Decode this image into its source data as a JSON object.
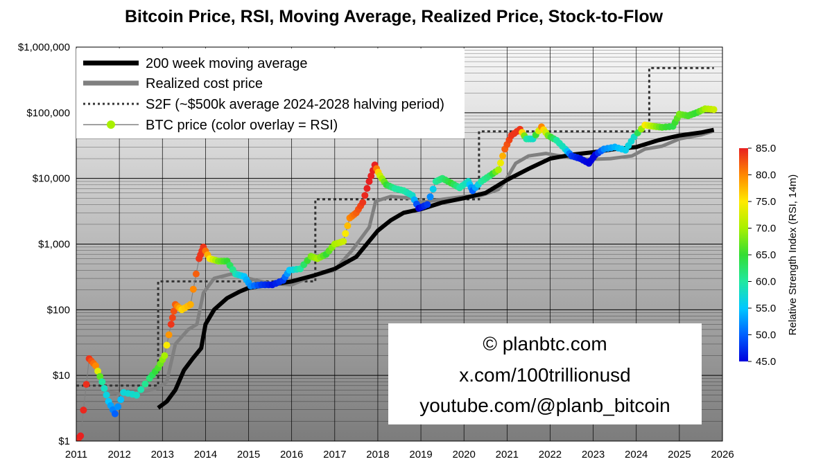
{
  "title": "Bitcoin Price, RSI, Moving Average, Realized Price, Stock-to-Flow",
  "chart_data": {
    "type": "line",
    "yscale": "log",
    "ylim": [
      1,
      1000000
    ],
    "xlim": [
      2011,
      2026
    ],
    "y_ticks": [
      {
        "value": 1,
        "label": "$1"
      },
      {
        "value": 10,
        "label": "$10"
      },
      {
        "value": 100,
        "label": "$100"
      },
      {
        "value": 1000,
        "label": "$1,000"
      },
      {
        "value": 10000,
        "label": "$10,000"
      },
      {
        "value": 100000,
        "label": "$100,000"
      },
      {
        "value": 1000000,
        "label": "$1,000,000"
      }
    ],
    "x_ticks": [
      "2011",
      "2012",
      "2013",
      "2014",
      "2015",
      "2016",
      "2017",
      "2018",
      "2019",
      "2020",
      "2021",
      "2022",
      "2023",
      "2024",
      "2025",
      "2026"
    ],
    "legend": [
      {
        "label": "200 week moving average",
        "style": "thick-black"
      },
      {
        "label": "Realized cost price",
        "style": "thick-gray"
      },
      {
        "label": "S2F (~$500k average 2024-2028 halving period)",
        "style": "dotted-black"
      },
      {
        "label": "BTC price (color overlay = RSI)",
        "style": "gray-with-marker"
      }
    ],
    "colorbar": {
      "label": "Relative Strength Index (RSI, 14m)",
      "min": 45,
      "max": 85,
      "ticks": [
        "85.0",
        "80.0",
        "75.0",
        "70.0",
        "65.0",
        "60.0",
        "55.0",
        "50.0",
        "45.0"
      ]
    },
    "series": [
      {
        "name": "200 week moving average",
        "x": [
          2012.9,
          2013.1,
          2013.3,
          2013.5,
          2013.7,
          2013.9,
          2014.0,
          2014.2,
          2014.5,
          2014.8,
          2015.0,
          2015.5,
          2016.0,
          2016.5,
          2017.0,
          2017.5,
          2018.0,
          2018.3,
          2018.6,
          2019.0,
          2019.5,
          2020.0,
          2020.5,
          2021.0,
          2021.5,
          2022.0,
          2022.5,
          2023.0,
          2023.5,
          2024.0,
          2024.5,
          2025.0,
          2025.5,
          2025.8
        ],
        "y": [
          3.2,
          4,
          6,
          12,
          18,
          26,
          60,
          100,
          150,
          190,
          215,
          240,
          270,
          330,
          420,
          640,
          1600,
          2300,
          3000,
          3400,
          4300,
          5000,
          6000,
          9500,
          14000,
          20000,
          23000,
          25000,
          28000,
          30000,
          38000,
          45000,
          50000,
          55000
        ]
      },
      {
        "name": "Realized cost price",
        "x": [
          2011.6,
          2012.0,
          2012.5,
          2012.9,
          2013.1,
          2013.3,
          2013.6,
          2013.8,
          2013.95,
          2014.2,
          2014.6,
          2015.0,
          2015.5,
          2016.0,
          2016.5,
          2017.0,
          2017.4,
          2017.8,
          2017.95,
          2018.3,
          2018.8,
          2019.0,
          2019.5,
          2020.0,
          2020.4,
          2020.8,
          2020.95,
          2021.2,
          2021.5,
          2021.9,
          2022.4,
          2022.9,
          2023.4,
          2023.9,
          2024.2,
          2024.6,
          2025.0,
          2025.5,
          2025.8
        ],
        "y": [
          6,
          5.2,
          5.5,
          6.5,
          8,
          30,
          50,
          60,
          180,
          300,
          350,
          300,
          250,
          240,
          330,
          400,
          800,
          1800,
          4500,
          5300,
          5000,
          4300,
          4800,
          5300,
          5500,
          6800,
          9000,
          17000,
          22000,
          24000,
          21000,
          19500,
          20000,
          22000,
          28000,
          31000,
          40000,
          46000,
          53000
        ]
      },
      {
        "name": "S2F",
        "x": [
          2011.0,
          2012.9,
          2012.9,
          2016.55,
          2016.55,
          2020.35,
          2020.35,
          2024.3,
          2024.3,
          2025.8
        ],
        "y": [
          7,
          7,
          270,
          270,
          4800,
          4800,
          52000,
          52000,
          480000,
          480000
        ]
      },
      {
        "name": "BTC price",
        "x": [
          2011.0,
          2011.1,
          2011.3,
          2011.45,
          2011.6,
          2011.75,
          2011.9,
          2012.1,
          2012.4,
          2012.7,
          2012.9,
          2013.05,
          2013.2,
          2013.3,
          2013.45,
          2013.65,
          2013.85,
          2013.95,
          2014.1,
          2014.3,
          2014.5,
          2014.7,
          2014.9,
          2015.05,
          2015.3,
          2015.55,
          2015.8,
          2015.95,
          2016.2,
          2016.45,
          2016.6,
          2016.8,
          2017.0,
          2017.2,
          2017.35,
          2017.5,
          2017.65,
          2017.8,
          2017.93,
          2018.05,
          2018.2,
          2018.4,
          2018.6,
          2018.8,
          2018.95,
          2019.15,
          2019.35,
          2019.5,
          2019.7,
          2019.9,
          2020.1,
          2020.2,
          2020.4,
          2020.6,
          2020.8,
          2020.95,
          2021.1,
          2021.3,
          2021.45,
          2021.6,
          2021.8,
          2021.95,
          2022.15,
          2022.35,
          2022.5,
          2022.7,
          2022.9,
          2023.05,
          2023.25,
          2023.5,
          2023.75,
          2023.95,
          2024.2,
          2024.4,
          2024.6,
          2024.85,
          2025.0,
          2025.2,
          2025.4,
          2025.6,
          2025.8
        ],
        "y": [
          1,
          1.2,
          18,
          14,
          8,
          4,
          2.6,
          5.5,
          5,
          9,
          13,
          20,
          60,
          120,
          100,
          120,
          600,
          900,
          600,
          550,
          550,
          350,
          320,
          230,
          240,
          240,
          280,
          400,
          420,
          650,
          600,
          700,
          1000,
          1100,
          2500,
          3000,
          4300,
          9000,
          16000,
          11000,
          8000,
          7000,
          6500,
          5500,
          3500,
          4000,
          9000,
          10000,
          8500,
          7200,
          9000,
          6500,
          9000,
          11000,
          13500,
          28000,
          45000,
          56000,
          40000,
          40000,
          61000,
          45000,
          38000,
          28000,
          22000,
          20000,
          17000,
          23000,
          28000,
          30000,
          27000,
          43000,
          65000,
          62000,
          60000,
          62000,
          95000,
          90000,
          100000,
          115000,
          112000
        ],
        "rsi": [
          84,
          85,
          84,
          80,
          60,
          55,
          50,
          57,
          58,
          62,
          66,
          70,
          84,
          82,
          76,
          78,
          84,
          84,
          75,
          68,
          65,
          59,
          55,
          52,
          48,
          46,
          48,
          55,
          60,
          68,
          70,
          65,
          70,
          72,
          80,
          82,
          84,
          86,
          85,
          72,
          65,
          60,
          60,
          58,
          45,
          48,
          60,
          62,
          65,
          60,
          58,
          50,
          60,
          62,
          70,
          82,
          84,
          84,
          60,
          58,
          80,
          68,
          60,
          58,
          48,
          46,
          45,
          45,
          52,
          54,
          56,
          58,
          75,
          70,
          66,
          64,
          68,
          66,
          65,
          70,
          72
        ],
        "note": "BTC price is drawn as markers coloured by RSI (jet scale 45-85)."
      }
    ]
  },
  "watermark": {
    "line1": "© planbtc.com",
    "line2": "x.com/100trillionusd",
    "line3": "youtube.com/@planb_bitcoin"
  }
}
